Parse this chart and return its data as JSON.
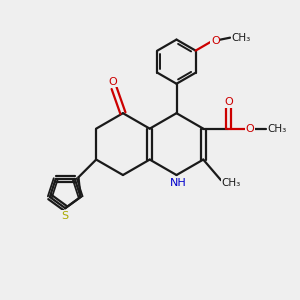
{
  "bg_color": "#efefef",
  "bond_color": "#1a1a1a",
  "o_color": "#cc0000",
  "n_color": "#0000cc",
  "s_color": "#aaaa00",
  "lw": 1.6,
  "fig_size": [
    3.0,
    3.0
  ],
  "dpi": 100,
  "xlim": [
    0,
    10
  ],
  "ylim": [
    0,
    10
  ]
}
